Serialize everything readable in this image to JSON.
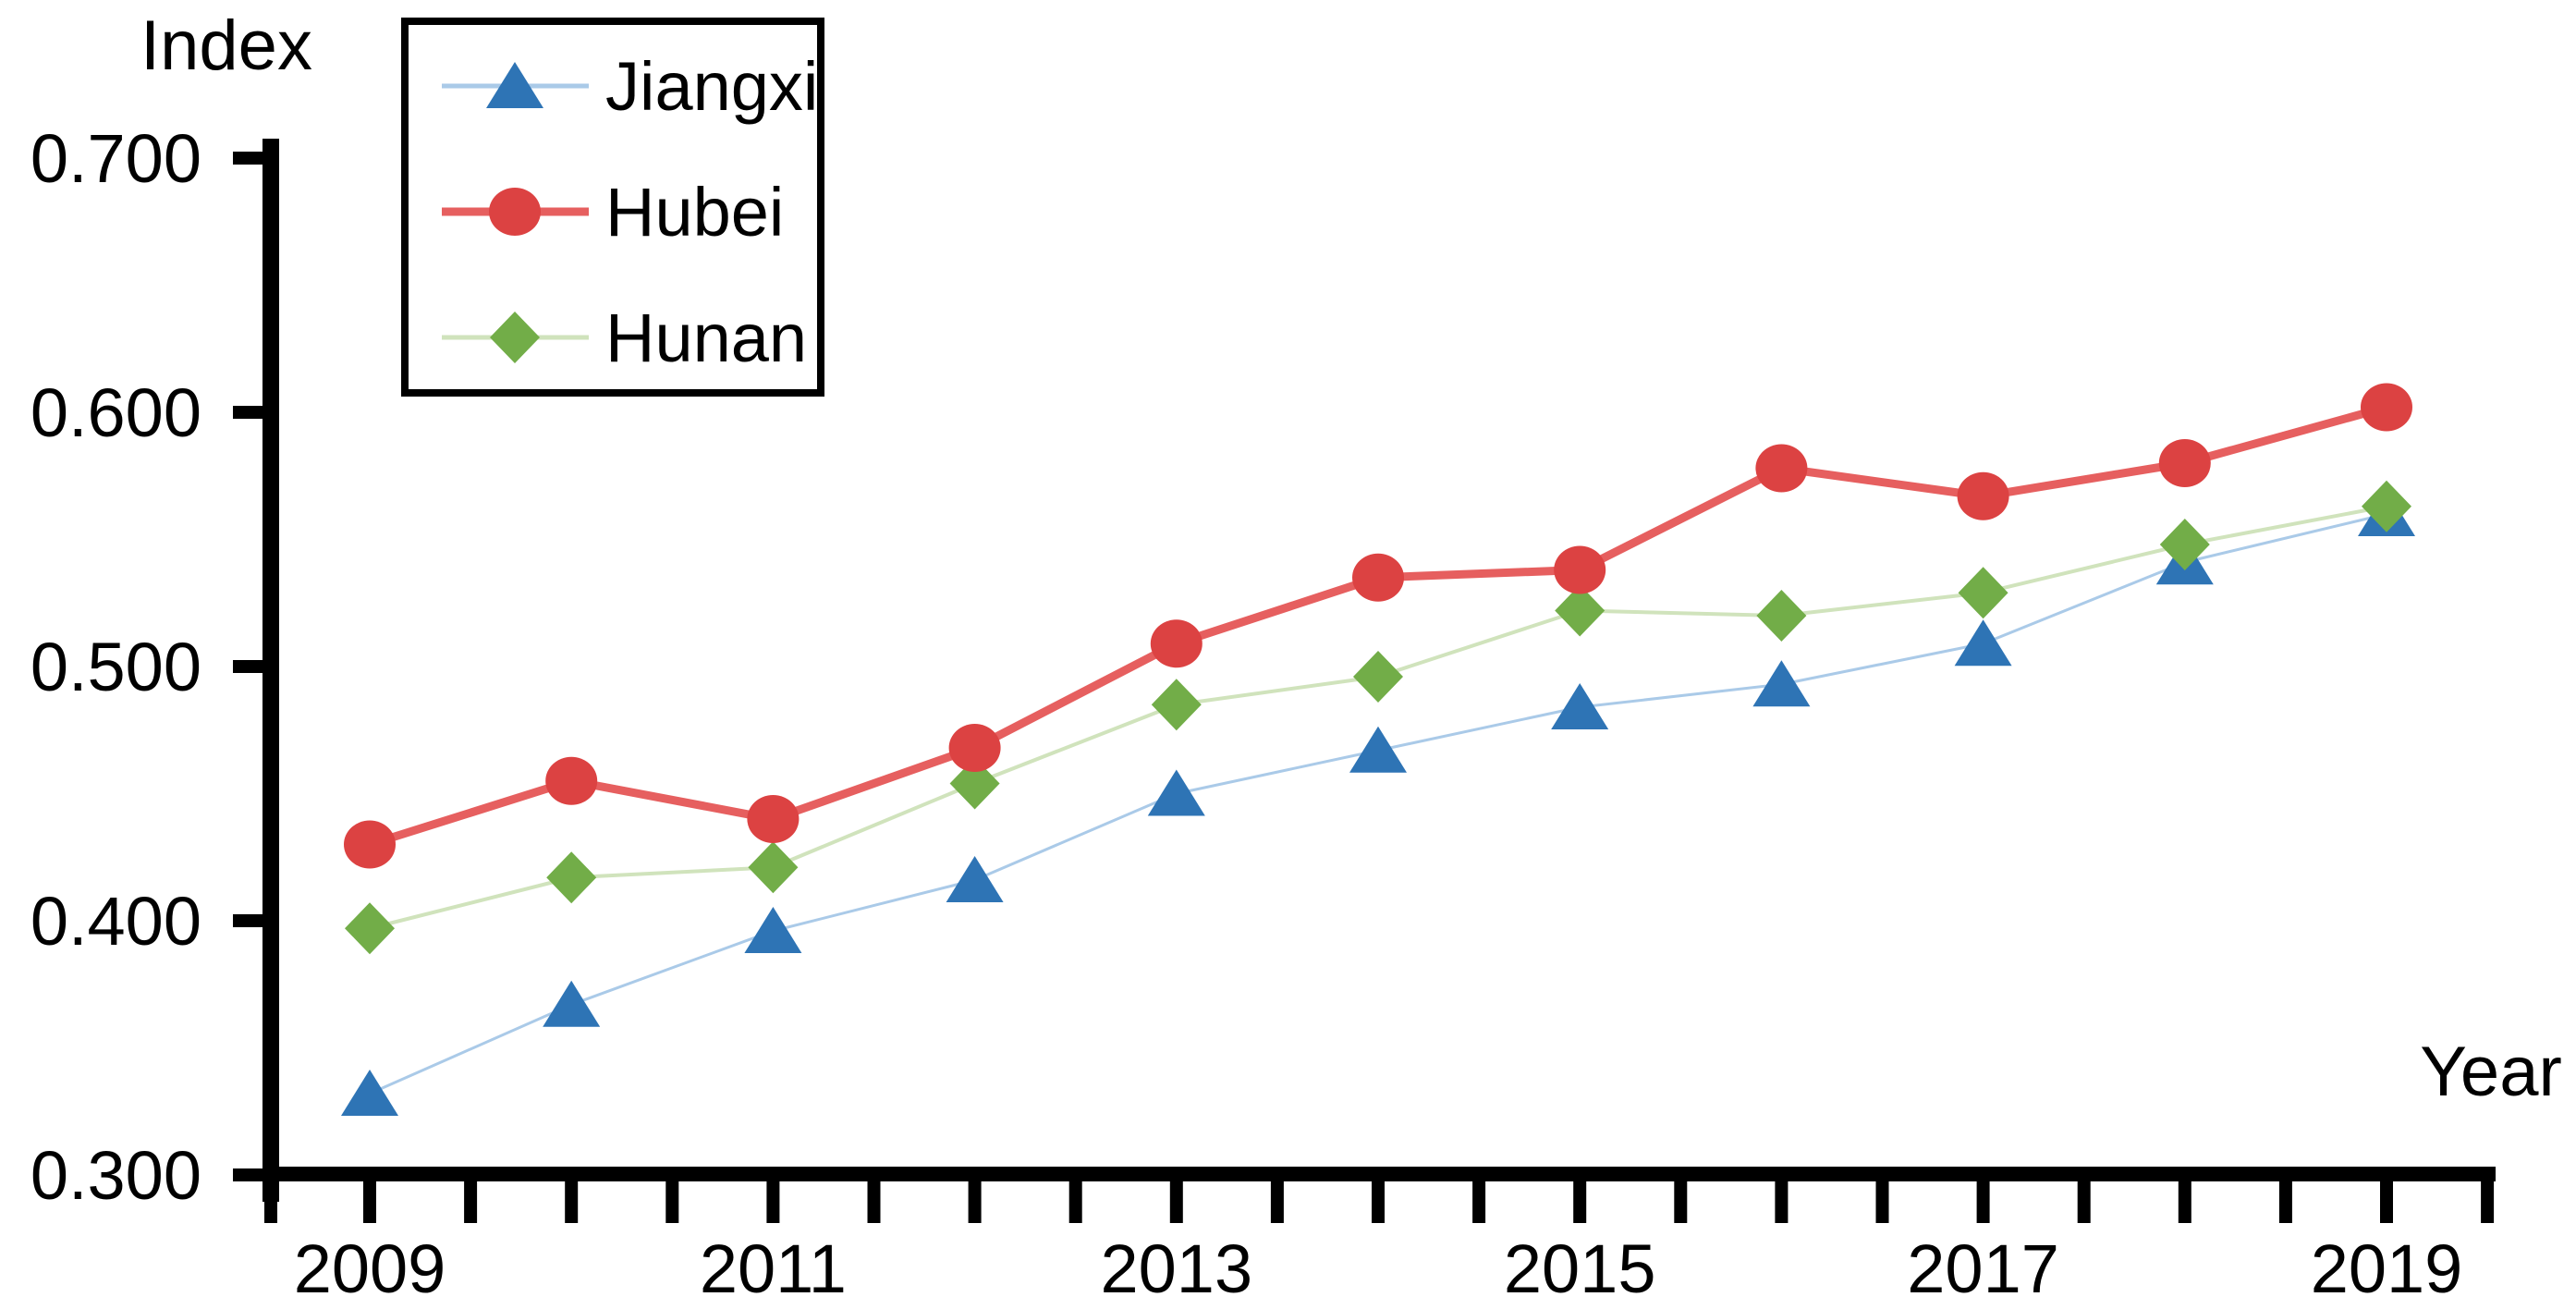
{
  "figure": {
    "background": "#ffffff",
    "axis_color": "#000000",
    "text_color": "#000000"
  },
  "chart_data": {
    "type": "line",
    "title": "",
    "ylabel": "Index",
    "xlabel": "Year",
    "x": [
      2009,
      2010,
      2011,
      2012,
      2013,
      2014,
      2015,
      2016,
      2017,
      2018,
      2019
    ],
    "x_tick_labels": [
      "2009",
      "2011",
      "2013",
      "2015",
      "2017",
      "2019"
    ],
    "y_tick_labels": [
      "0.300",
      "0.400",
      "0.500",
      "0.600",
      "0.700"
    ],
    "y_tick_values": [
      0.3,
      0.4,
      0.5,
      0.6,
      0.7
    ],
    "ylim": [
      0.3,
      0.7
    ],
    "xlim": [
      2009,
      2019
    ],
    "grid": false,
    "legend_position": "top-left",
    "legend_border_color": "#000000",
    "draw_order": [
      0,
      2,
      1
    ],
    "series": [
      {
        "name": "Jiangxi",
        "marker": "triangle",
        "marker_color": "#2E74B5",
        "line_color": "#AACAE8",
        "line_width": 3,
        "values": [
          0.332,
          0.367,
          0.396,
          0.416,
          0.45,
          0.467,
          0.484,
          0.493,
          0.509,
          0.541,
          0.56
        ]
      },
      {
        "name": "Hubei",
        "marker": "circle",
        "marker_color": "#DC4242",
        "line_color": "#E65F5F",
        "line_width": 9,
        "values": [
          0.43,
          0.455,
          0.44,
          0.468,
          0.509,
          0.535,
          0.538,
          0.578,
          0.567,
          0.58,
          0.602
        ]
      },
      {
        "name": "Hunan",
        "marker": "diamond",
        "marker_color": "#72AD48",
        "line_color": "#D0E3BC",
        "line_width": 4,
        "values": [
          0.397,
          0.417,
          0.421,
          0.454,
          0.485,
          0.496,
          0.522,
          0.52,
          0.529,
          0.548,
          0.563
        ]
      }
    ]
  }
}
